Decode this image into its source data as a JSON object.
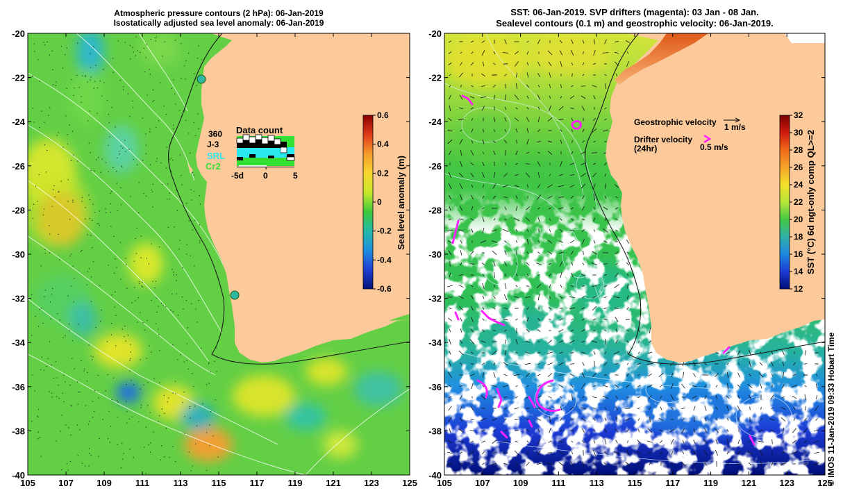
{
  "left_panel": {
    "title_line1": "Atmospheric pressure contours (2 hPa): 06-Jan-2019",
    "title_line2": "Isostatically adjusted sea level anomaly: 06-Jan-2019",
    "colorbar_label": "Sea level anomaly (m)",
    "colorbar_ticks": [
      "0.6",
      "0.4",
      "0.2",
      "0",
      "-0.2",
      "-0.4",
      "-0.6"
    ],
    "colorbar_colors": [
      "#8b0000",
      "#e03a1a",
      "#f59b2a",
      "#f7d72f",
      "#c8e82a",
      "#3ec93a",
      "#22b8a8",
      "#1f8fe0",
      "#1f3fd0",
      "#00127a"
    ],
    "data_count": {
      "title": "Data count",
      "missions": [
        "360",
        "J-3",
        "SRL",
        "Cr2"
      ],
      "mission_colors": [
        "#000000",
        "#000000",
        "#29e8f0",
        "#35e035"
      ],
      "axis_labels": [
        "-5d",
        "0",
        "5"
      ]
    }
  },
  "right_panel": {
    "title_line1": "SST: 06-Jan-2019. SVP drifters (magenta): 03 Jan - 08 Jan.",
    "title_line2": "Sealevel contours (0.1 m) and geostrophic velocity: 06-Jan-2019.",
    "colorbar_label": "SST (°C) 6d ngt-only comp QL>=2",
    "colorbar_ticks": [
      "32",
      "30",
      "28",
      "26",
      "24",
      "22",
      "20",
      "18",
      "16",
      "14",
      "12"
    ],
    "colorbar_colors": [
      "#7a0000",
      "#d01a10",
      "#f06a1a",
      "#f5a52a",
      "#f3e02a",
      "#b8e63a",
      "#45c845",
      "#2fb0a8",
      "#1f86e0",
      "#1c3bd6",
      "#000e78"
    ],
    "legend": {
      "geostrophic_label": "Geostrophic velocity",
      "geostrophic_scale": "1 m/s",
      "drifter_label": "Drifter velocity",
      "drifter_sub": "(24hr)",
      "drifter_scale": "0.5 m/s"
    },
    "credit": "© IMOS 11-Jan-2019 09:33 Hobart Time"
  },
  "axes": {
    "x_ticks": [
      "105",
      "107",
      "109",
      "111",
      "113",
      "115",
      "117",
      "119",
      "121",
      "123",
      "125"
    ],
    "y_ticks": [
      "-20",
      "-22",
      "-24",
      "-26",
      "-28",
      "-30",
      "-32",
      "-34",
      "-36",
      "-38",
      "-40"
    ]
  },
  "colors": {
    "land": "#fbc99a",
    "magenta": "#ff22ff",
    "no_data": "#ffffff"
  }
}
